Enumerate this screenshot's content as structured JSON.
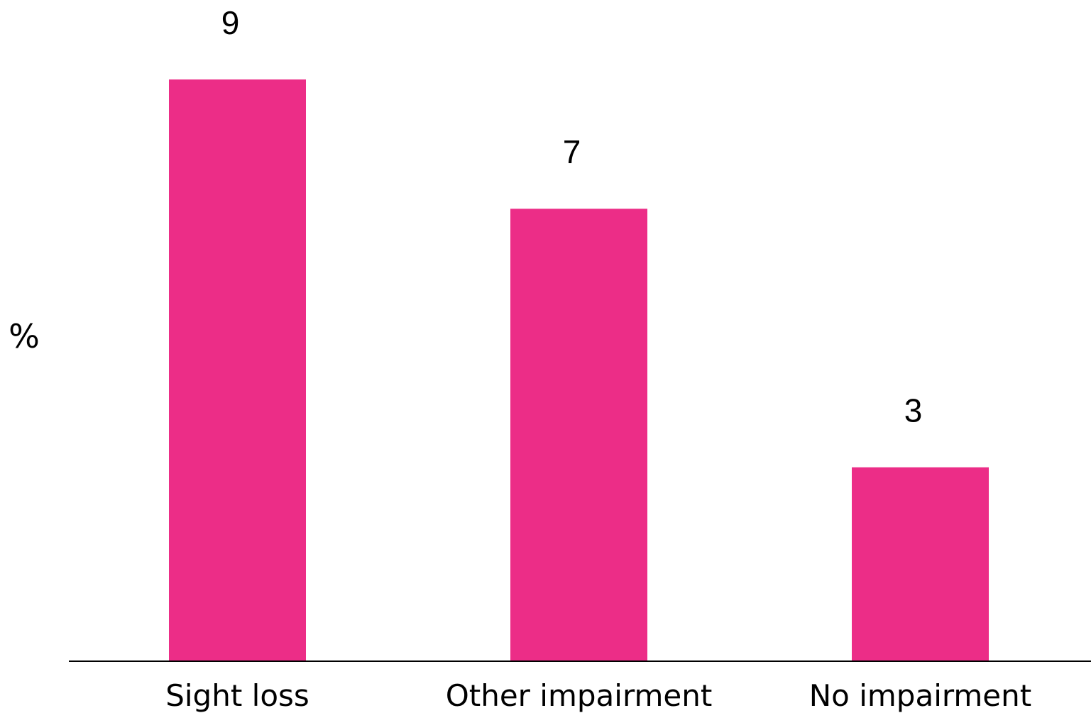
{
  "chart_data": {
    "type": "bar",
    "categories": [
      "Sight loss",
      "Other impairment",
      "No impairment"
    ],
    "values": [
      9,
      7,
      3
    ],
    "value_labels": [
      "9",
      "7",
      "3"
    ],
    "title": "",
    "xlabel": "",
    "ylabel": "%",
    "ylim": [
      0,
      9
    ],
    "grid": false,
    "legend": "none",
    "bar_color": "#EC2D87",
    "axis_color": "#000000"
  }
}
